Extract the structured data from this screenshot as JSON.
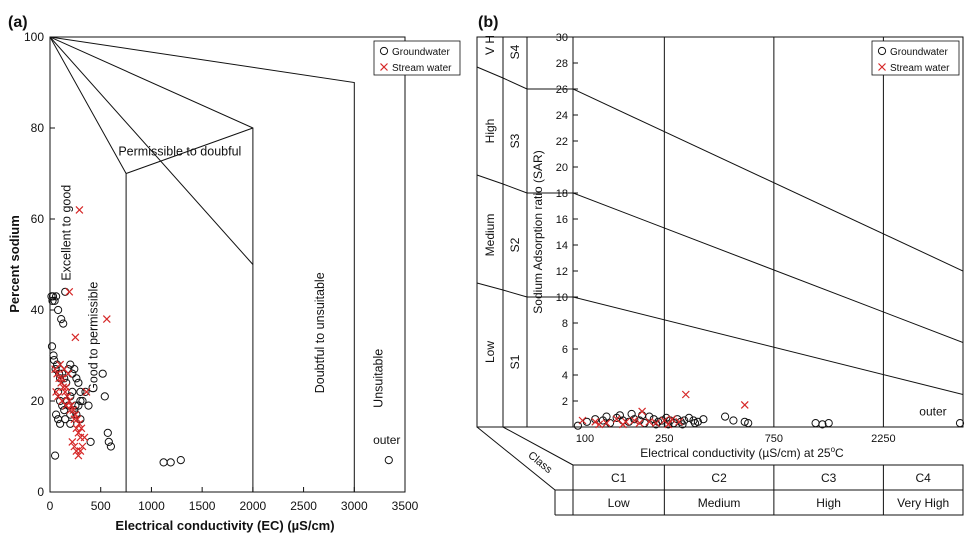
{
  "chart_data": [
    {
      "panel_label": "(a)",
      "type": "scatter",
      "title": "",
      "xlabel": "Electrical conductivity (EC) (µS/cm)",
      "ylabel": "Percent sodium",
      "xlim": [
        0,
        3500
      ],
      "ylim": [
        0,
        100
      ],
      "xticks": [
        0,
        500,
        1000,
        1500,
        2000,
        2500,
        3000,
        3500
      ],
      "yticks": [
        0,
        20,
        40,
        60,
        80,
        100
      ],
      "grid": false,
      "legend": {
        "placement": "top-right",
        "entries": [
          "Groundwater",
          "Stream water"
        ]
      },
      "boundaries": [
        [
          [
            0,
            100
          ],
          [
            3000,
            90
          ],
          [
            3000,
            0
          ]
        ],
        [
          [
            0,
            100
          ],
          [
            2000,
            80
          ],
          [
            2000,
            0
          ]
        ],
        [
          [
            0,
            100
          ],
          [
            2000,
            50
          ]
        ],
        [
          [
            0,
            100
          ],
          [
            750,
            70
          ],
          [
            750,
            0
          ]
        ],
        [
          [
            750,
            70
          ],
          [
            2000,
            80
          ]
        ]
      ],
      "region_labels": [
        {
          "text": "Permissible to doubful",
          "x": 1280,
          "y": 74,
          "rotate": false
        },
        {
          "text": "Excellent to good",
          "x": 200,
          "y": 57,
          "rotate": true
        },
        {
          "text": "Good to permissible",
          "x": 470,
          "y": 34,
          "rotate": true
        },
        {
          "text": "Doubtful to unsuitable",
          "x": 2700,
          "y": 35,
          "rotate": true
        },
        {
          "text": "Unsuitable",
          "x": 3280,
          "y": 25,
          "rotate": true
        }
      ],
      "annotations": [
        {
          "text": "outer",
          "x": 3320,
          "y": 10.5
        }
      ],
      "series": [
        {
          "name": "Groundwater",
          "marker": "circle",
          "color": "#111111",
          "points": [
            [
              15,
              43
            ],
            [
              25,
              42
            ],
            [
              30,
              43
            ],
            [
              45,
              42
            ],
            [
              60,
              43
            ],
            [
              80,
              40
            ],
            [
              110,
              38
            ],
            [
              130,
              37
            ],
            [
              150,
              44
            ],
            [
              20,
              32
            ],
            [
              35,
              30
            ],
            [
              40,
              29
            ],
            [
              55,
              27
            ],
            [
              70,
              28
            ],
            [
              90,
              26
            ],
            [
              100,
              25
            ],
            [
              120,
              26
            ],
            [
              140,
              25
            ],
            [
              160,
              24
            ],
            [
              180,
              27
            ],
            [
              200,
              28
            ],
            [
              220,
              26
            ],
            [
              240,
              27
            ],
            [
              260,
              25
            ],
            [
              280,
              24
            ],
            [
              300,
              22
            ],
            [
              320,
              20
            ],
            [
              80,
              22
            ],
            [
              100,
              20
            ],
            [
              120,
              19
            ],
            [
              140,
              18
            ],
            [
              160,
              20
            ],
            [
              180,
              19
            ],
            [
              200,
              21
            ],
            [
              220,
              22
            ],
            [
              240,
              18
            ],
            [
              260,
              17
            ],
            [
              280,
              19
            ],
            [
              300,
              16
            ],
            [
              60,
              17
            ],
            [
              80,
              16
            ],
            [
              100,
              15
            ],
            [
              150,
              16
            ],
            [
              200,
              17
            ],
            [
              250,
              19
            ],
            [
              300,
              20
            ],
            [
              350,
              22
            ],
            [
              380,
              19
            ],
            [
              400,
              11
            ],
            [
              200,
              15
            ],
            [
              50,
              8
            ],
            [
              570,
              13
            ],
            [
              580,
              11
            ],
            [
              600,
              10
            ],
            [
              520,
              26
            ],
            [
              540,
              21
            ],
            [
              1120,
              6.5
            ],
            [
              1190,
              6.5
            ],
            [
              1290,
              7
            ],
            [
              3340,
              7
            ]
          ]
        },
        {
          "name": "Stream water",
          "marker": "x",
          "color": "#d62828",
          "points": [
            [
              290,
              62
            ],
            [
              190,
              44
            ],
            [
              560,
              38
            ],
            [
              250,
              34
            ],
            [
              50,
              27
            ],
            [
              70,
              26
            ],
            [
              90,
              25
            ],
            [
              110,
              24
            ],
            [
              130,
              23
            ],
            [
              150,
              22
            ],
            [
              170,
              21
            ],
            [
              190,
              20
            ],
            [
              210,
              19
            ],
            [
              230,
              18
            ],
            [
              250,
              17
            ],
            [
              270,
              16
            ],
            [
              290,
              15
            ],
            [
              310,
              14
            ],
            [
              100,
              28
            ],
            [
              140,
              27
            ],
            [
              180,
              26
            ],
            [
              60,
              22
            ],
            [
              80,
              21
            ],
            [
              120,
              20
            ],
            [
              160,
              19
            ],
            [
              200,
              18
            ],
            [
              240,
              16
            ],
            [
              260,
              14
            ],
            [
              280,
              13
            ],
            [
              300,
              12
            ],
            [
              220,
              11
            ],
            [
              240,
              10
            ],
            [
              260,
              9
            ],
            [
              280,
              8
            ],
            [
              300,
              9
            ],
            [
              320,
              10
            ],
            [
              340,
              12
            ],
            [
              360,
              22
            ],
            [
              120,
              25
            ],
            [
              160,
              23
            ]
          ]
        }
      ]
    },
    {
      "panel_label": "(b)",
      "type": "scatter",
      "title": "",
      "xlabel": "Electrical conductivity (µS/cm) at 25",
      "xlabel_sup": "o",
      "xlabel_tail": "C",
      "ylabel": "Sodium Adsorption ratio (SAR)",
      "ylim": [
        0,
        30
      ],
      "yticks": [
        0,
        2,
        4,
        6,
        8,
        10,
        12,
        14,
        16,
        18,
        20,
        22,
        24,
        26,
        28,
        30
      ],
      "xscale": "log",
      "xlim": [
        100,
        5000
      ],
      "xticks": [
        100,
        250,
        750,
        2250
      ],
      "grid": false,
      "legend": {
        "placement": "top-right",
        "entries": [
          "Groundwater",
          "Stream water"
        ]
      },
      "boundaries": [
        [
          [
            100,
            26
          ],
          [
            5000,
            12
          ]
        ],
        [
          [
            100,
            18
          ],
          [
            5000,
            6.5
          ]
        ],
        [
          [
            100,
            10
          ],
          [
            5000,
            2.5
          ]
        ]
      ],
      "annotations": [
        {
          "text": "outer",
          "x": 3700,
          "y": 0.9
        }
      ],
      "salinity_classes": [
        {
          "code": "C1",
          "label": "Low"
        },
        {
          "code": "C2",
          "label": "Medium"
        },
        {
          "code": "C3",
          "label": "High"
        },
        {
          "code": "C4",
          "label": "Very High"
        }
      ],
      "sodium_classes": [
        {
          "code": "S1",
          "label": "Low"
        },
        {
          "code": "S2",
          "label": "Medium"
        },
        {
          "code": "S3",
          "label": "High"
        },
        {
          "code": "S4",
          "label": "V H"
        }
      ],
      "class_label": "Class",
      "series": [
        {
          "name": "Groundwater",
          "marker": "circle",
          "color": "#111111",
          "points": [
            [
              105,
              0.1
            ],
            [
              115,
              0.4
            ],
            [
              125,
              0.6
            ],
            [
              135,
              0.5
            ],
            [
              145,
              0.3
            ],
            [
              155,
              0.7
            ],
            [
              165,
              0.5
            ],
            [
              175,
              0.4
            ],
            [
              185,
              0.6
            ],
            [
              195,
              0.5
            ],
            [
              205,
              0.3
            ],
            [
              215,
              0.8
            ],
            [
              225,
              0.6
            ],
            [
              235,
              0.4
            ],
            [
              245,
              0.5
            ],
            [
              255,
              0.7
            ],
            [
              265,
              0.5
            ],
            [
              275,
              0.3
            ],
            [
              285,
              0.6
            ],
            [
              295,
              0.4
            ],
            [
              305,
              0.5
            ],
            [
              320,
              0.7
            ],
            [
              335,
              0.5
            ],
            [
              350,
              0.4
            ],
            [
              370,
              0.6
            ],
            [
              160,
              0.9
            ],
            [
              180,
              1.0
            ],
            [
              200,
              0.9
            ],
            [
              140,
              0.8
            ],
            [
              230,
              0.2
            ],
            [
              260,
              0.2
            ],
            [
              300,
              0.2
            ],
            [
              340,
              0.3
            ],
            [
              460,
              0.8
            ],
            [
              500,
              0.5
            ],
            [
              560,
              0.4
            ],
            [
              580,
              0.3
            ],
            [
              1140,
              0.3
            ],
            [
              1220,
              0.2
            ],
            [
              1300,
              0.3
            ],
            [
              4850,
              0.3
            ]
          ]
        },
        {
          "name": "Stream water",
          "marker": "x",
          "color": "#d62828",
          "points": [
            [
              110,
              0.5
            ],
            [
              125,
              0.4
            ],
            [
              140,
              0.3
            ],
            [
              155,
              0.6
            ],
            [
              170,
              0.4
            ],
            [
              185,
              0.5
            ],
            [
              200,
              1.2
            ],
            [
              215,
              0.4
            ],
            [
              230,
              0.3
            ],
            [
              250,
              0.5
            ],
            [
              270,
              0.6
            ],
            [
              290,
              0.4
            ],
            [
              310,
              2.5
            ],
            [
              560,
              1.7
            ],
            [
              130,
              0.2
            ],
            [
              165,
              0.2
            ],
            [
              195,
              0.3
            ],
            [
              260,
              0.2
            ]
          ]
        }
      ]
    }
  ]
}
